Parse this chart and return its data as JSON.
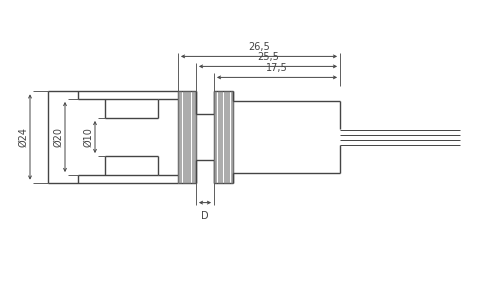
{
  "bg_color": "#ffffff",
  "line_color": "#444444",
  "dim_color": "#444444",
  "font_size": 7,
  "dims": {
    "26_5": "26,5",
    "25_5": "25,5",
    "17_5": "17,5",
    "D": "D",
    "phi24": "Ø24",
    "phi20": "Ø20",
    "phi10": "Ø10"
  }
}
